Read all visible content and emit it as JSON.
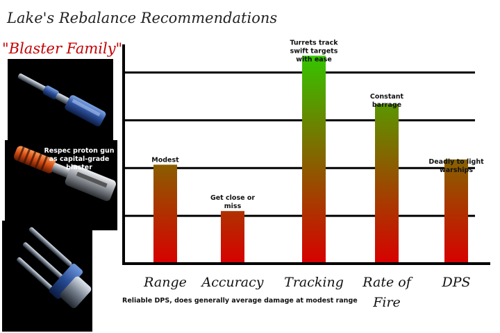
{
  "title": "Lake's Rebalance Recommendations",
  "family_label": "\"Blaster Family\"",
  "weapons": [
    {
      "name": "blaster-cannon-image"
    },
    {
      "name": "proton-gun-image",
      "caption": "Respec proton gun as capital-grade blaster"
    },
    {
      "name": "triple-blaster-turret-image"
    }
  ],
  "chart_data": {
    "type": "bar",
    "categories": [
      "Range",
      "Accuracy",
      "Tracking",
      "Rate of Fire",
      "DPS"
    ],
    "values": [
      2.07,
      1.1,
      4.35,
      3.34,
      2.18
    ],
    "ylim": [
      0,
      4.5
    ],
    "gridlines": [
      1,
      2,
      3,
      4
    ],
    "grid": true,
    "bar_gradient": {
      "top": "#2ecc00",
      "bottom": "#d80000"
    },
    "bar_labels": [
      "Modest",
      "Get close or miss",
      "Turrets track swift targets with ease",
      "Constant barrage",
      "Deadly to light warships"
    ],
    "note": "Reliable DPS, does generally average damage at modest range"
  }
}
